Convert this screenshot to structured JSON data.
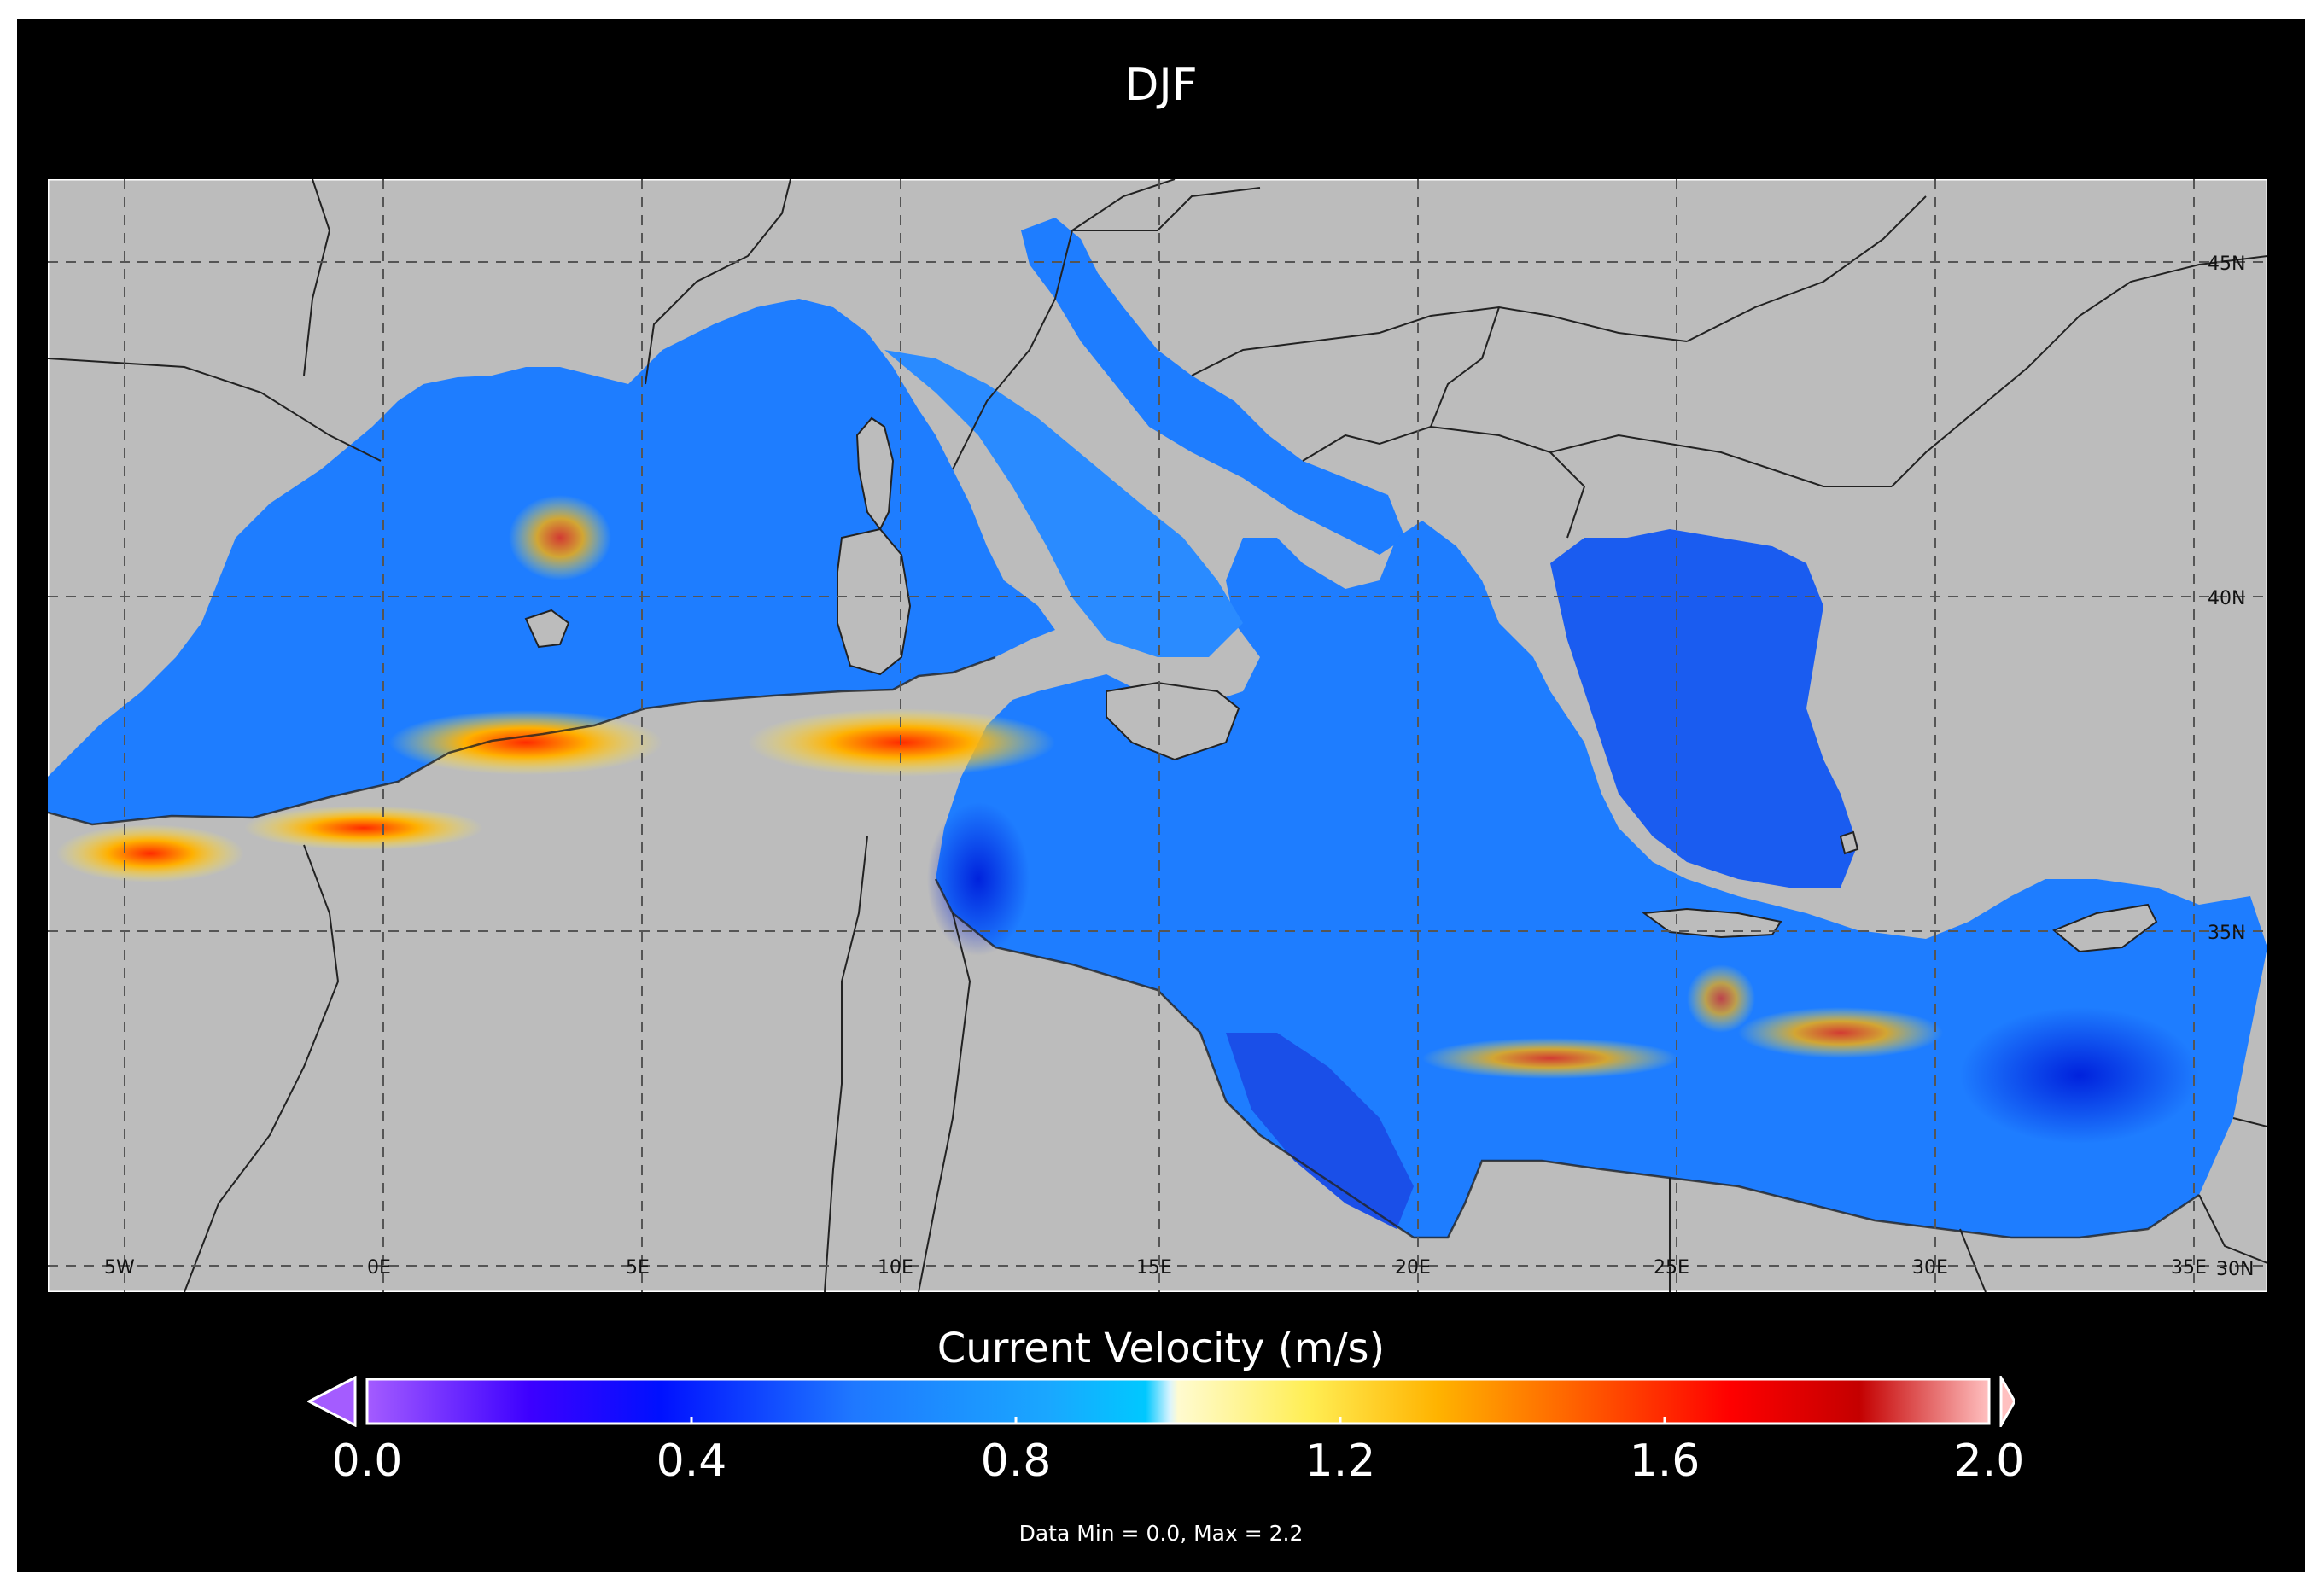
{
  "title": "DJF",
  "map": {
    "region": "Mediterranean Sea",
    "variable": "Current Velocity",
    "lon_labels": [
      "5W",
      "0E",
      "5E",
      "10E",
      "15E",
      "20E",
      "25E",
      "30E",
      "35E"
    ],
    "lat_labels": [
      "45N",
      "40N",
      "35N",
      "30N"
    ],
    "gridlines": "dashed",
    "land_color": "#bcbcbc",
    "background_color": "#000000"
  },
  "colorbar": {
    "title": "Current Velocity (m/s)",
    "ticks": [
      "0.0",
      "0.4",
      "0.8",
      "1.2",
      "1.6",
      "2.0"
    ],
    "range": [
      0.0,
      2.0
    ],
    "extend": "both",
    "colors": [
      "#a45cff",
      "#3d00ff",
      "#0010ff",
      "#1f78ff",
      "#1aa7ff",
      "#00c8ff",
      "#d9f4ff",
      "#ffee55",
      "#ffb300",
      "#ff6600",
      "#ff0000",
      "#c40000",
      "#ffc0c0"
    ]
  },
  "data_range_text": "Data Min = 0.0, Max = 2.2"
}
